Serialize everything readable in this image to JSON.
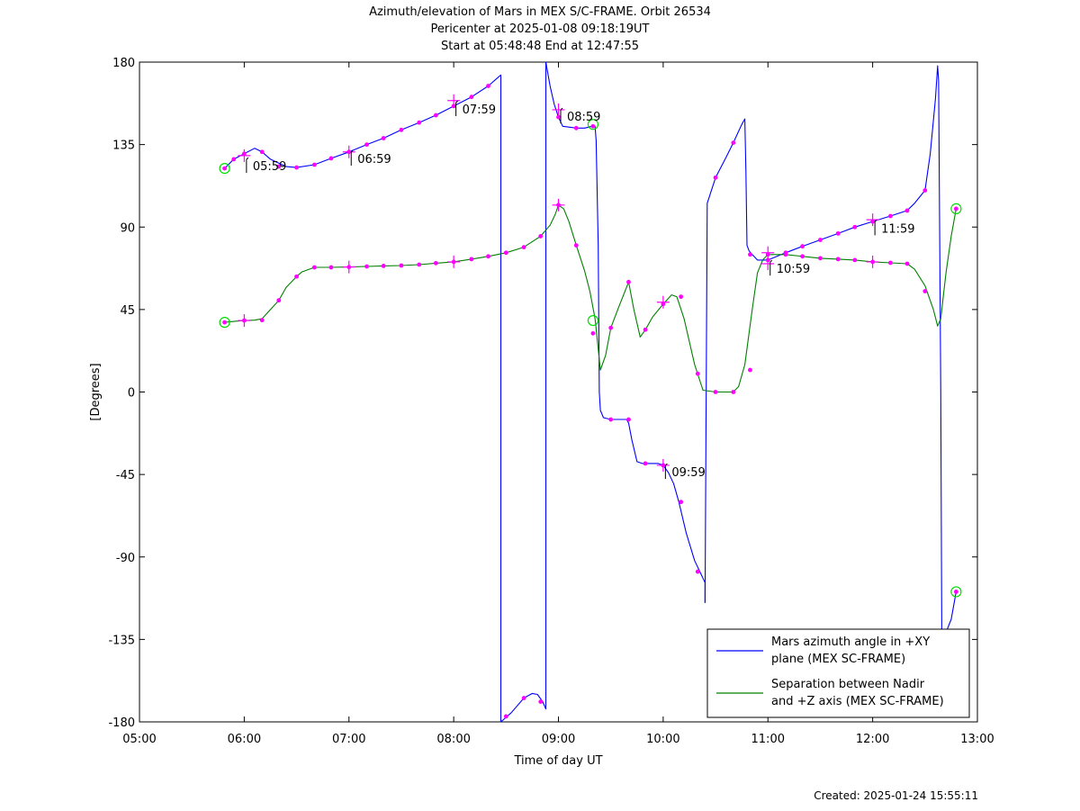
{
  "chart_data": {
    "type": "line",
    "title": [
      "Azimuth/elevation of Mars in MEX S/C-FRAME.  Orbit 26534",
      "Pericenter at 2025-01-08 09:18:19UT",
      "Start at 05:48:48 End at 12:47:55"
    ],
    "xlabel": "Time of day UT",
    "ylabel": "[Degrees]",
    "xlim": [
      5.0,
      13.0
    ],
    "ylim": [
      -180,
      180
    ],
    "xticks": [
      5,
      6,
      7,
      8,
      9,
      10,
      11,
      12,
      13
    ],
    "xtick_labels": [
      "05:00",
      "06:00",
      "07:00",
      "08:00",
      "09:00",
      "10:00",
      "11:00",
      "12:00",
      "13:00"
    ],
    "yticks": [
      180,
      135,
      90,
      45,
      0,
      -45,
      -90,
      -135,
      -180
    ],
    "ytick_labels": [
      "180",
      "135",
      "90",
      "45",
      "0",
      "-45",
      "-90",
      "-135",
      "-180"
    ],
    "grid": false,
    "legend_position": "bottom-right",
    "series": [
      {
        "name": "Mars azimuth angle in +XY plane (MEX SC-FRAME)",
        "legend_lines": [
          "Mars azimuth angle in +XY",
          "plane (MEX SC-FRAME)"
        ],
        "color": "#0000ff",
        "segments": [
          [
            [
              5.813,
              122
            ],
            [
              5.9,
              127
            ],
            [
              6.0,
              130
            ],
            [
              6.1,
              133
            ],
            [
              6.17,
              131
            ],
            [
              6.25,
              127
            ],
            [
              6.4,
              123
            ],
            [
              6.5,
              122.5
            ],
            [
              6.67,
              124
            ],
            [
              6.83,
              127.5
            ],
            [
              7.0,
              131
            ],
            [
              7.17,
              135
            ],
            [
              7.33,
              138.5
            ],
            [
              7.5,
              143
            ],
            [
              7.67,
              147
            ],
            [
              7.83,
              151
            ],
            [
              8.0,
              156
            ],
            [
              8.17,
              161
            ],
            [
              8.33,
              167
            ],
            [
              8.45,
              173
            ],
            [
              8.45,
              -180
            ]
          ],
          [
            [
              8.45,
              -180
            ],
            [
              8.47,
              -179
            ],
            [
              8.55,
              -175
            ],
            [
              8.67,
              -167
            ],
            [
              8.75,
              -164.5
            ],
            [
              8.8,
              -165
            ],
            [
              8.85,
              -169
            ],
            [
              8.88,
              -173
            ],
            [
              8.88,
              180
            ]
          ],
          [
            [
              8.88,
              180
            ],
            [
              8.92,
              167
            ],
            [
              8.96,
              157
            ],
            [
              9.0,
              150
            ],
            [
              9.04,
              145
            ],
            [
              9.17,
              144
            ],
            [
              9.25,
              144
            ],
            [
              9.32,
              145
            ],
            [
              9.35,
              145
            ],
            [
              9.36,
              137
            ],
            [
              9.38,
              80
            ],
            [
              9.39,
              0
            ],
            [
              9.4,
              -10
            ],
            [
              9.43,
              -14
            ],
            [
              9.5,
              -15
            ],
            [
              9.6,
              -15
            ],
            [
              9.65,
              -15
            ],
            [
              9.67,
              -17
            ],
            [
              9.7,
              -26
            ],
            [
              9.75,
              -38
            ],
            [
              9.8,
              -39
            ],
            [
              9.95,
              -39
            ],
            [
              10.0,
              -40
            ],
            [
              10.05,
              -44
            ],
            [
              10.1,
              -50
            ],
            [
              10.15,
              -60
            ],
            [
              10.22,
              -77
            ],
            [
              10.3,
              -92
            ],
            [
              10.35,
              -98
            ],
            [
              10.4,
              -104
            ],
            [
              10.4,
              -115
            ]
          ],
          [
            [
              10.4,
              -115
            ],
            [
              10.42,
              103
            ],
            [
              10.5,
              117
            ],
            [
              10.6,
              128
            ],
            [
              10.67,
              136
            ],
            [
              10.75,
              146
            ],
            [
              10.78,
              149
            ],
            [
              10.79,
              120
            ],
            [
              10.8,
              80
            ],
            [
              10.82,
              77
            ],
            [
              10.85,
              75
            ],
            [
              10.9,
              72
            ],
            [
              11.0,
              72
            ],
            [
              11.17,
              76
            ],
            [
              11.33,
              79.5
            ],
            [
              11.5,
              83
            ],
            [
              11.67,
              86.5
            ],
            [
              11.83,
              90
            ],
            [
              12.0,
              93
            ],
            [
              12.17,
              96
            ],
            [
              12.33,
              99
            ],
            [
              12.4,
              103
            ],
            [
              12.5,
              110
            ],
            [
              12.55,
              130
            ],
            [
              12.6,
              160
            ],
            [
              12.62,
              178
            ],
            [
              12.63,
              170
            ],
            [
              12.65,
              0
            ],
            [
              12.66,
              -130
            ]
          ],
          [
            [
              12.66,
              -130
            ],
            [
              12.68,
              -134
            ],
            [
              12.75,
              -124
            ],
            [
              12.797,
              -109
            ]
          ]
        ]
      },
      {
        "name": "Separation between Nadir and +Z axis (MEX SC-FRAME)",
        "legend_lines": [
          "Separation between Nadir",
          "and +Z axis (MEX SC-FRAME)"
        ],
        "color": "#008000",
        "segments": [
          [
            [
              5.813,
              38
            ],
            [
              5.9,
              38.5
            ],
            [
              6.0,
              39
            ],
            [
              6.1,
              39.2
            ],
            [
              6.17,
              40
            ],
            [
              6.25,
              45
            ],
            [
              6.33,
              50
            ],
            [
              6.4,
              57
            ],
            [
              6.5,
              63
            ],
            [
              6.55,
              65.5
            ],
            [
              6.67,
              68
            ],
            [
              6.83,
              68
            ],
            [
              7.0,
              68.2
            ],
            [
              7.17,
              68.5
            ],
            [
              7.33,
              68.8
            ],
            [
              7.5,
              69
            ],
            [
              7.67,
              69.5
            ],
            [
              7.83,
              70.3
            ],
            [
              8.0,
              71
            ],
            [
              8.17,
              72.5
            ],
            [
              8.33,
              74
            ],
            [
              8.5,
              76
            ],
            [
              8.67,
              79
            ],
            [
              8.83,
              85
            ],
            [
              8.92,
              91
            ],
            [
              8.97,
              97
            ],
            [
              9.0,
              102
            ],
            [
              9.05,
              100
            ],
            [
              9.1,
              93
            ],
            [
              9.17,
              80
            ],
            [
              9.25,
              66
            ],
            [
              9.3,
              55
            ],
            [
              9.35,
              40
            ],
            [
              9.4,
              12
            ],
            [
              9.45,
              20
            ],
            [
              9.5,
              35
            ],
            [
              9.58,
              47
            ],
            [
              9.67,
              60
            ],
            [
              9.72,
              45
            ],
            [
              9.78,
              30
            ],
            [
              9.83,
              34
            ],
            [
              9.9,
              41
            ],
            [
              10.0,
              48
            ],
            [
              10.08,
              53
            ],
            [
              10.13,
              52
            ],
            [
              10.2,
              40
            ],
            [
              10.3,
              15
            ],
            [
              10.38,
              1
            ],
            [
              10.5,
              0
            ],
            [
              10.67,
              0
            ],
            [
              10.72,
              3
            ],
            [
              10.78,
              15
            ],
            [
              10.85,
              45
            ],
            [
              10.9,
              65
            ],
            [
              10.95,
              72
            ],
            [
              11.0,
              75
            ],
            [
              11.17,
              75
            ],
            [
              11.33,
              74
            ],
            [
              11.5,
              73
            ],
            [
              11.67,
              72.5
            ],
            [
              11.83,
              72
            ],
            [
              12.0,
              71
            ],
            [
              12.17,
              70.5
            ],
            [
              12.33,
              70
            ],
            [
              12.4,
              67
            ],
            [
              12.5,
              58
            ],
            [
              12.58,
              45
            ],
            [
              12.62,
              36
            ],
            [
              12.65,
              40
            ],
            [
              12.7,
              65
            ],
            [
              12.75,
              85
            ],
            [
              12.797,
              100
            ]
          ]
        ]
      }
    ],
    "markers": {
      "magenta_dots": [
        {
          "series": 0,
          "x": [
            5.813,
            5.9,
            6.0,
            6.17,
            6.33,
            6.5,
            6.67,
            6.83,
            7.0,
            7.17,
            7.33,
            7.5,
            7.67,
            7.83,
            8.0,
            8.17,
            8.33,
            8.5,
            8.67,
            8.83,
            9.0,
            9.17,
            9.33,
            9.5,
            9.67,
            9.83,
            10.0,
            10.17,
            10.33,
            10.5,
            10.67,
            10.83,
            11.0,
            11.17,
            11.33,
            11.5,
            11.67,
            11.83,
            12.0,
            12.17,
            12.33,
            12.5,
            12.67,
            12.797
          ],
          "y": [
            122,
            127,
            130,
            131,
            123,
            122.5,
            124,
            127.5,
            131,
            135,
            138.5,
            143,
            147,
            151,
            156,
            161,
            167,
            -177,
            -167,
            -169,
            150,
            144,
            145,
            -15,
            -15,
            -39,
            -40,
            -60,
            -98,
            117,
            136,
            75,
            72,
            76,
            79.5,
            83,
            86.5,
            90,
            93,
            96,
            99,
            110,
            -134,
            -109
          ]
        },
        {
          "series": 1,
          "x": [
            5.813,
            6.0,
            6.17,
            6.33,
            6.5,
            6.67,
            6.83,
            7.0,
            7.17,
            7.33,
            7.5,
            7.67,
            7.83,
            8.0,
            8.17,
            8.33,
            8.5,
            8.67,
            8.83,
            9.0,
            9.17,
            9.33,
            9.5,
            9.67,
            9.83,
            10.0,
            10.17,
            10.33,
            10.5,
            10.67,
            10.83,
            11.0,
            11.17,
            11.33,
            11.5,
            11.67,
            11.83,
            12.0,
            12.17,
            12.33,
            12.5,
            12.797
          ],
          "y": [
            38,
            39,
            39.2,
            50,
            63,
            68,
            68,
            68.2,
            68.5,
            68.8,
            69,
            69.5,
            70.3,
            71,
            72.5,
            74,
            76,
            79,
            85,
            102,
            80,
            32,
            35,
            60,
            34,
            48,
            52,
            10,
            0,
            0,
            12,
            75,
            75,
            74,
            73,
            72.5,
            72,
            71,
            70.5,
            70,
            55,
            100
          ]
        }
      ],
      "plus_markers": [
        {
          "x": [
            6.0,
            7.0,
            8.0,
            9.0,
            10.0,
            11.0,
            12.0
          ],
          "y": [
            129,
            131,
            159,
            154,
            -40,
            70,
            94
          ]
        },
        {
          "x": [
            6.0,
            7.0,
            8.0,
            9.0,
            10.0,
            11.0,
            12.0
          ],
          "y": [
            39,
            68.2,
            71,
            102,
            49,
            76,
            71
          ]
        }
      ],
      "start_end_circles": [
        {
          "x": 5.813,
          "y": 122
        },
        {
          "x": 5.813,
          "y": 38
        },
        {
          "x": 9.33,
          "y": 146
        },
        {
          "x": 9.33,
          "y": 39
        },
        {
          "x": 12.797,
          "y": 100
        },
        {
          "x": 12.797,
          "y": -109
        }
      ]
    },
    "annotations": [
      {
        "text": "05:59",
        "x": 6.03,
        "y": 122
      },
      {
        "text": "06:59",
        "x": 7.03,
        "y": 126
      },
      {
        "text": "07:59",
        "x": 8.03,
        "y": 153
      },
      {
        "text": "08:59",
        "x": 9.03,
        "y": 149
      },
      {
        "text": "09:59",
        "x": 10.03,
        "y": -45
      },
      {
        "text": "10:59",
        "x": 11.03,
        "y": 66
      },
      {
        "text": "11:59",
        "x": 12.03,
        "y": 88
      }
    ]
  },
  "footer": {
    "created": "Created: 2025-01-24 15:55:11"
  }
}
